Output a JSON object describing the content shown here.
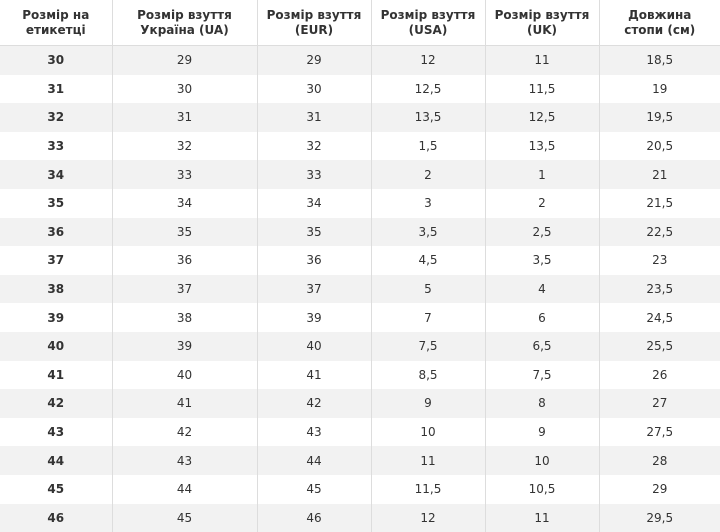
{
  "table": {
    "header": [
      "Розмір на етикетці",
      "Розмір взуття Україна (UA)",
      "Розмір взуття (EUR)",
      "Розмір взуття (USA)",
      "Розмір взуття (UK)",
      "Довжина стопи (см)"
    ],
    "rows": [
      [
        "30",
        "29",
        "29",
        "12",
        "11",
        "18,5"
      ],
      [
        "31",
        "30",
        "30",
        "12,5",
        "11,5",
        "19"
      ],
      [
        "32",
        "31",
        "31",
        "13,5",
        "12,5",
        "19,5"
      ],
      [
        "33",
        "32",
        "32",
        "1,5",
        "13,5",
        "20,5"
      ],
      [
        "34",
        "33",
        "33",
        "2",
        "1",
        "21"
      ],
      [
        "35",
        "34",
        "34",
        "3",
        "2",
        "21,5"
      ],
      [
        "36",
        "35",
        "35",
        "3,5",
        "2,5",
        "22,5"
      ],
      [
        "37",
        "36",
        "36",
        "4,5",
        "3,5",
        "23"
      ],
      [
        "38",
        "37",
        "37",
        "5",
        "4",
        "23,5"
      ],
      [
        "39",
        "38",
        "39",
        "7",
        "6",
        "24,5"
      ],
      [
        "40",
        "39",
        "40",
        "7,5",
        "6,5",
        "25,5"
      ],
      [
        "41",
        "40",
        "41",
        "8,5",
        "7,5",
        "26"
      ],
      [
        "42",
        "41",
        "42",
        "9",
        "8",
        "27"
      ],
      [
        "43",
        "42",
        "43",
        "10",
        "9",
        "27,5"
      ],
      [
        "44",
        "43",
        "44",
        "11",
        "10",
        "28"
      ],
      [
        "45",
        "44",
        "45",
        "11,5",
        "10,5",
        "29"
      ],
      [
        "46",
        "45",
        "46",
        "12",
        "11",
        "29,5"
      ]
    ]
  }
}
